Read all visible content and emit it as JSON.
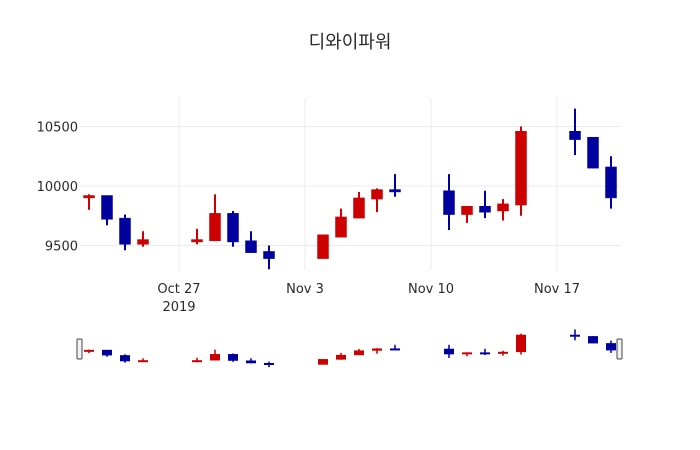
{
  "chart_data": {
    "type": "candlestick",
    "title": "디와이파워",
    "xlabel": "",
    "ylabel": "",
    "ylim": [
      9210,
      10730
    ],
    "grid": true,
    "legend": "none",
    "colors": {
      "increasing": "#cc0000",
      "decreasing": "#00009f"
    },
    "x_ticks": [
      {
        "label": "Oct 27",
        "sub": "2019",
        "date": "2019-10-27"
      },
      {
        "label": "Nov 3",
        "sub": "",
        "date": "2019-11-03"
      },
      {
        "label": "Nov 10",
        "sub": "",
        "date": "2019-11-10"
      },
      {
        "label": "Nov 17",
        "sub": "",
        "date": "2019-11-17"
      }
    ],
    "y_ticks": [
      9500,
      10000,
      10500
    ],
    "rangeslider": true,
    "series": [
      {
        "date": "2019-10-22",
        "open": 9900,
        "high": 9930,
        "low": 9800,
        "close": 9920
      },
      {
        "date": "2019-10-23",
        "open": 9920,
        "high": 9920,
        "low": 9670,
        "close": 9720
      },
      {
        "date": "2019-10-24",
        "open": 9730,
        "high": 9760,
        "low": 9460,
        "close": 9510
      },
      {
        "date": "2019-10-25",
        "open": 9510,
        "high": 9620,
        "low": 9490,
        "close": 9550
      },
      {
        "date": "2019-10-28",
        "open": 9530,
        "high": 9640,
        "low": 9510,
        "close": 9550
      },
      {
        "date": "2019-10-29",
        "open": 9540,
        "high": 9930,
        "low": 9540,
        "close": 9770
      },
      {
        "date": "2019-10-30",
        "open": 9770,
        "high": 9790,
        "low": 9490,
        "close": 9530
      },
      {
        "date": "2019-10-31",
        "open": 9540,
        "high": 9620,
        "low": 9440,
        "close": 9440
      },
      {
        "date": "2019-11-01",
        "open": 9450,
        "high": 9500,
        "low": 9300,
        "close": 9390
      },
      {
        "date": "2019-11-04",
        "open": 9390,
        "high": 9590,
        "low": 9390,
        "close": 9590
      },
      {
        "date": "2019-11-05",
        "open": 9570,
        "high": 9810,
        "low": 9570,
        "close": 9740
      },
      {
        "date": "2019-11-06",
        "open": 9730,
        "high": 9950,
        "low": 9730,
        "close": 9900
      },
      {
        "date": "2019-11-07",
        "open": 9890,
        "high": 9980,
        "low": 9780,
        "close": 9970
      },
      {
        "date": "2019-11-08",
        "open": 9970,
        "high": 10100,
        "low": 9910,
        "close": 9950
      },
      {
        "date": "2019-11-11",
        "open": 9960,
        "high": 10100,
        "low": 9630,
        "close": 9760
      },
      {
        "date": "2019-11-12",
        "open": 9760,
        "high": 9830,
        "low": 9690,
        "close": 9830
      },
      {
        "date": "2019-11-13",
        "open": 9830,
        "high": 9960,
        "low": 9730,
        "close": 9780
      },
      {
        "date": "2019-11-14",
        "open": 9790,
        "high": 9890,
        "low": 9710,
        "close": 9850
      },
      {
        "date": "2019-11-15",
        "open": 9840,
        "high": 10500,
        "low": 9750,
        "close": 10460
      },
      {
        "date": "2019-11-18",
        "open": 10460,
        "high": 10650,
        "low": 10260,
        "close": 10390
      },
      {
        "date": "2019-11-19",
        "open": 10410,
        "high": 10410,
        "low": 10150,
        "close": 10150
      },
      {
        "date": "2019-11-20",
        "open": 10160,
        "high": 10250,
        "low": 9810,
        "close": 9900
      }
    ]
  }
}
